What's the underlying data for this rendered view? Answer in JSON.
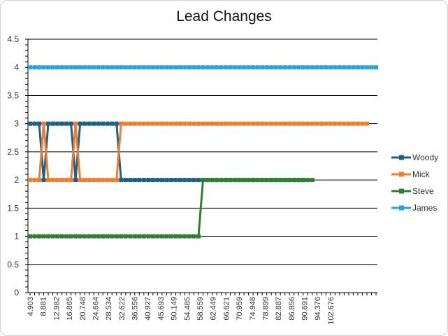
{
  "chart_data": {
    "type": "line",
    "title": "Lead Changes",
    "xlabel": "",
    "ylabel": "",
    "ylim": [
      0,
      4.5
    ],
    "y_ticks": [
      "0",
      "0.5",
      "1",
      "1.5",
      "2",
      "2.5",
      "3",
      "3.5",
      "4",
      "4.5"
    ],
    "grid": true,
    "legend_position": "right",
    "x_tick_labels": [
      "4.903",
      "8.881",
      "12.982",
      "16.865",
      "20.748",
      "24.664",
      "28.534",
      "32.622",
      "36.556",
      "40.927",
      "45.693",
      "50.149",
      "54.485",
      "58.559",
      "62.449",
      "66.621",
      "70.959",
      "74.948",
      "78.899",
      "82.887",
      "86.856",
      "90.691",
      "94.376",
      "102.676"
    ],
    "series": [
      {
        "name": "Woody",
        "color": "#1f5f86",
        "values": [
          3,
          3,
          3,
          2,
          3,
          3,
          3,
          3,
          3,
          3,
          2,
          3,
          3,
          3,
          3,
          3,
          3,
          3,
          3,
          3,
          2,
          2,
          2,
          2,
          2,
          2,
          2,
          2,
          2,
          2,
          2,
          2,
          2,
          2,
          2,
          2,
          2,
          2,
          2,
          2,
          2,
          2,
          2,
          2,
          2,
          2,
          2,
          2,
          2,
          2,
          2,
          2,
          2,
          2,
          2,
          2,
          2,
          2,
          2,
          2,
          2
        ]
      },
      {
        "name": "Mick",
        "color": "#ed7d31",
        "values": [
          2,
          2,
          2,
          3,
          2,
          2,
          2,
          2,
          2,
          2,
          3,
          2,
          2,
          2,
          2,
          2,
          2,
          2,
          2,
          2,
          3,
          3,
          3,
          3,
          3,
          3,
          3,
          3,
          3,
          3,
          3,
          3,
          3,
          3,
          3,
          3,
          3,
          3,
          3,
          3,
          3,
          3,
          3,
          3,
          3,
          3,
          3,
          3,
          3,
          3,
          3,
          3,
          3,
          3,
          3,
          3,
          3,
          3,
          3,
          3,
          3,
          3,
          3,
          3,
          3,
          3,
          3,
          3,
          3,
          3,
          3,
          3,
          3,
          3,
          3
        ]
      },
      {
        "name": "Steve",
        "color": "#2e7d32",
        "values": [
          1,
          1,
          1,
          1,
          1,
          1,
          1,
          1,
          1,
          1,
          1,
          1,
          1,
          1,
          1,
          1,
          1,
          1,
          1,
          1,
          1,
          1,
          1,
          1,
          1,
          1,
          1,
          1,
          1,
          1,
          1,
          1,
          1,
          1,
          1,
          1,
          1,
          1,
          2,
          2,
          2,
          2,
          2,
          2,
          2,
          2,
          2,
          2,
          2,
          2,
          2,
          2,
          2,
          2,
          2,
          2,
          2,
          2,
          2,
          2,
          2,
          2,
          2
        ]
      },
      {
        "name": "James",
        "color": "#29a3dc",
        "values": [
          4,
          4,
          4,
          4,
          4,
          4,
          4,
          4,
          4,
          4,
          4,
          4,
          4,
          4,
          4,
          4,
          4,
          4,
          4,
          4,
          4,
          4,
          4,
          4,
          4,
          4,
          4,
          4,
          4,
          4,
          4,
          4,
          4,
          4,
          4,
          4,
          4,
          4,
          4,
          4,
          4,
          4,
          4,
          4,
          4,
          4,
          4,
          4,
          4,
          4,
          4,
          4,
          4,
          4,
          4,
          4,
          4,
          4,
          4,
          4,
          4,
          4,
          4,
          4,
          4,
          4,
          4,
          4,
          4,
          4,
          4,
          4,
          4,
          4,
          4,
          4,
          4
        ]
      }
    ]
  }
}
